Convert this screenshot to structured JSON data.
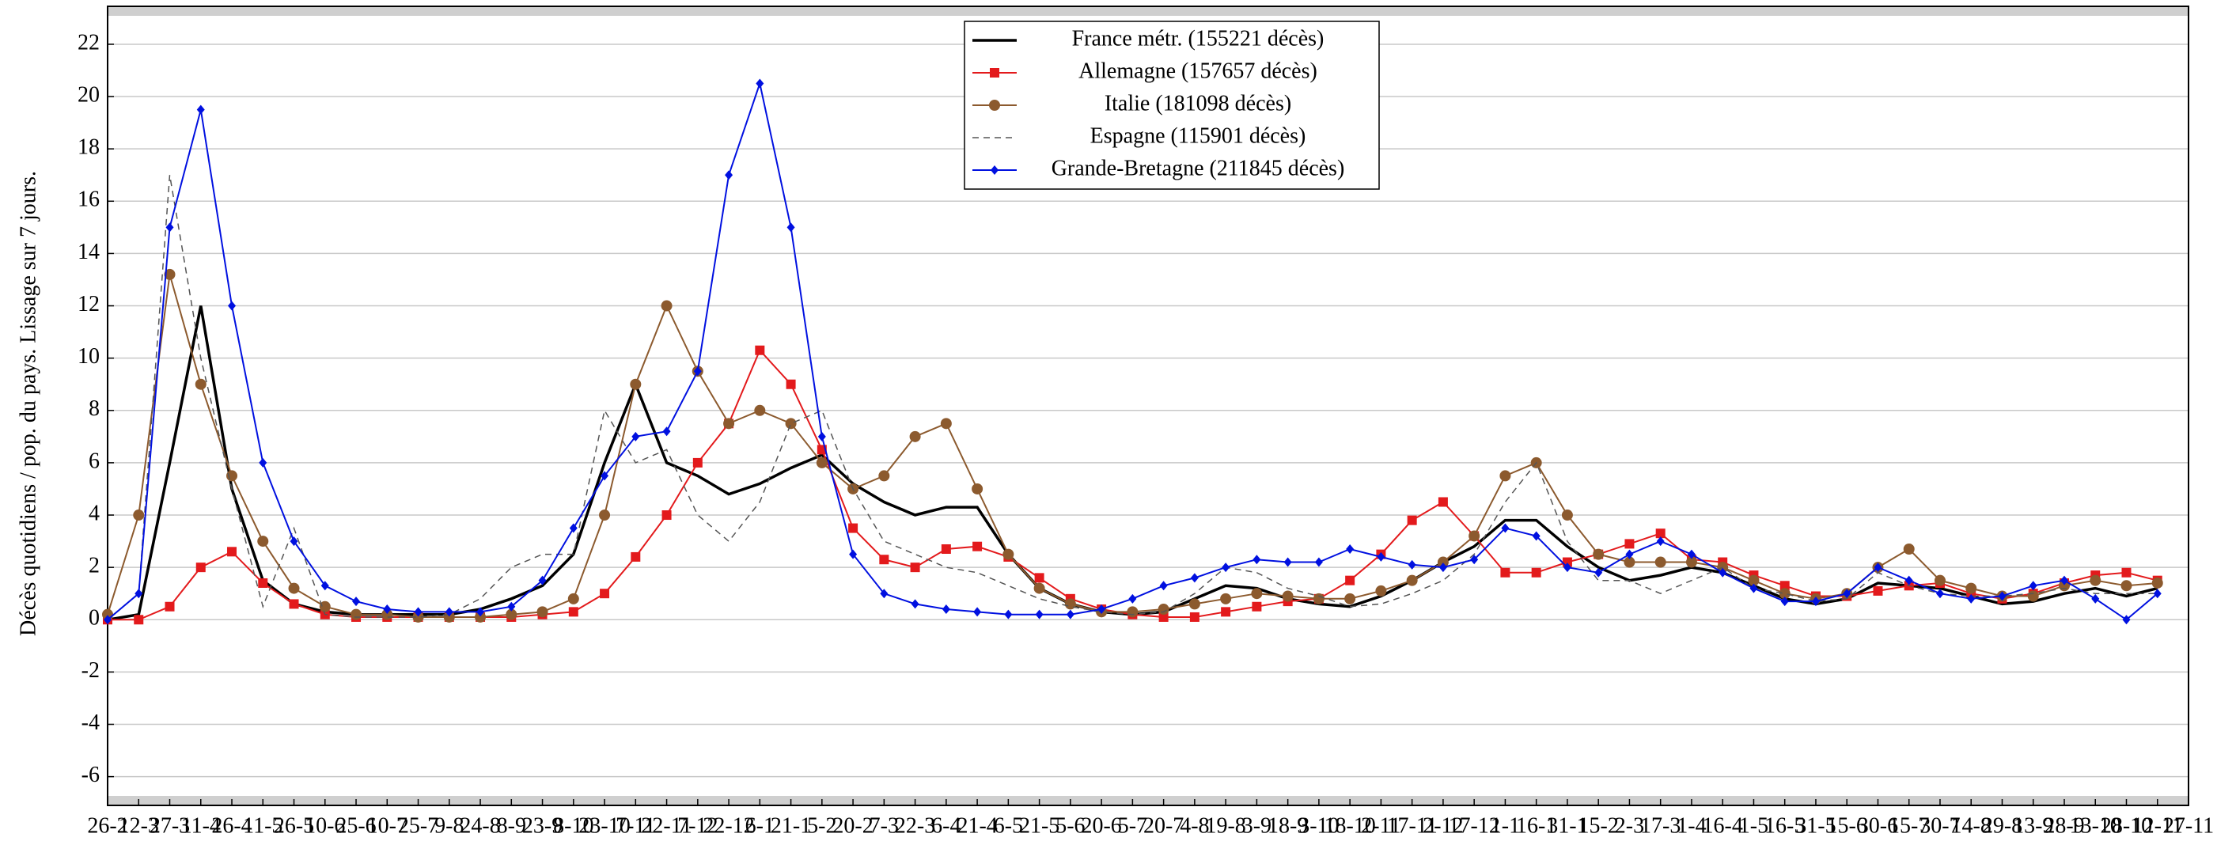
{
  "chart_data": {
    "type": "line",
    "ylabel": "Décès quotidiens / pop. du pays. Lissage sur 7 jours.",
    "categories": [
      "26-2",
      "12-3",
      "27-3",
      "11-4",
      "26-4",
      "11-5",
      "26-5",
      "10-6",
      "25-6",
      "10-7",
      "25-7",
      "9-8",
      "24-8",
      "8-9",
      "23-9",
      "8-10",
      "23-10",
      "7-11",
      "22-11",
      "7-12",
      "22-12",
      "6-1",
      "21-1",
      "5-2",
      "20-2",
      "7-3",
      "22-3",
      "6-4",
      "21-4",
      "6-5",
      "21-5",
      "5-6",
      "20-6",
      "5-7",
      "20-7",
      "4-8",
      "19-8",
      "3-9",
      "18-9",
      "3-10",
      "18-10",
      "2-11",
      "17-11",
      "2-12",
      "17-12",
      "1-1",
      "16-1",
      "31-1",
      "15-2",
      "2-3",
      "17-3",
      "1-4",
      "16-4",
      "1-5",
      "16-5",
      "31-5",
      "15-6",
      "30-6",
      "15-7",
      "30-7",
      "14-8",
      "29-8",
      "13-9",
      "28-9",
      "13-10",
      "28-10",
      "12-11",
      "27-11"
    ],
    "series": [
      {
        "name": "France métr. (155221 décès)",
        "color": "#000000",
        "marker": "none",
        "linestyle": "solid",
        "values": [
          0,
          0.2,
          6,
          12,
          5,
          1.5,
          0.6,
          0.3,
          0.2,
          0.2,
          0.2,
          0.2,
          0.4,
          0.8,
          1.3,
          2.5,
          6,
          9,
          6,
          5.5,
          4.8,
          5.2,
          5.8,
          6.3,
          5.2,
          4.5,
          4,
          4.3,
          4.3,
          2.5,
          1.2,
          0.6,
          0.3,
          0.2,
          0.3,
          0.8,
          1.3,
          1.2,
          0.8,
          0.6,
          0.5,
          0.9,
          1.5,
          2.2,
          2.8,
          3.8,
          3.8,
          2.8,
          2,
          1.5,
          1.7,
          2,
          1.8,
          1.3,
          0.8,
          0.6,
          0.8,
          1.4,
          1.3,
          1.2,
          0.9,
          0.6,
          0.7,
          1,
          1.2,
          0.9,
          1.2,
          null
        ]
      },
      {
        "name": "Allemagne (157657 décès)",
        "color": "#e31a1c",
        "marker": "square",
        "linestyle": "solid",
        "values": [
          0,
          0,
          0.5,
          2,
          2.6,
          1.4,
          0.6,
          0.2,
          0.1,
          0.1,
          0.1,
          0.1,
          0.1,
          0.1,
          0.2,
          0.3,
          1,
          2.4,
          4,
          6,
          7.5,
          10.3,
          9,
          6.5,
          3.5,
          2.3,
          2,
          2.7,
          2.8,
          2.4,
          1.6,
          0.8,
          0.4,
          0.2,
          0.1,
          0.1,
          0.3,
          0.5,
          0.7,
          0.8,
          1.5,
          2.5,
          3.8,
          4.5,
          3.2,
          1.8,
          1.8,
          2.2,
          2.5,
          2.9,
          3.3,
          2.3,
          2.2,
          1.7,
          1.3,
          0.9,
          0.9,
          1.1,
          1.3,
          1.4,
          1,
          0.8,
          1,
          1.4,
          1.7,
          1.8,
          1.5,
          null
        ]
      },
      {
        "name": "Italie (181098 décès)",
        "color": "#8c5a2e",
        "marker": "circle",
        "linestyle": "solid",
        "values": [
          0.2,
          4,
          13.2,
          9,
          5.5,
          3,
          1.2,
          0.5,
          0.2,
          0.2,
          0.1,
          0.1,
          0.1,
          0.2,
          0.3,
          0.8,
          4,
          9,
          12,
          9.5,
          7.5,
          8,
          7.5,
          6,
          5,
          5.5,
          7,
          7.5,
          5,
          2.5,
          1.2,
          0.6,
          0.3,
          0.3,
          0.4,
          0.6,
          0.8,
          1,
          0.9,
          0.8,
          0.8,
          1.1,
          1.5,
          2.2,
          3.2,
          5.5,
          6,
          4,
          2.5,
          2.2,
          2.2,
          2.2,
          2,
          1.5,
          1,
          0.8,
          1,
          2,
          2.7,
          1.5,
          1.2,
          0.9,
          0.9,
          1.3,
          1.5,
          1.3,
          1.4,
          null
        ]
      },
      {
        "name": "Espagne (115901 décès)",
        "color": "#555555",
        "marker": "none",
        "linestyle": "dashed",
        "values": [
          0,
          1,
          17,
          10,
          5,
          0.5,
          3.5,
          0.2,
          0.1,
          0.1,
          0.1,
          0.2,
          0.8,
          2,
          2.5,
          2.5,
          8,
          6,
          6.5,
          4,
          3,
          4.5,
          7.5,
          8,
          5,
          3,
          2.5,
          2,
          1.8,
          1.3,
          0.8,
          0.5,
          0.3,
          0.2,
          0.3,
          1,
          2,
          1.8,
          1.2,
          0.9,
          0.5,
          0.6,
          1,
          1.5,
          2.5,
          4.5,
          6,
          3,
          1.5,
          1.5,
          1,
          1.5,
          2,
          1.2,
          1,
          0.7,
          0.8,
          1.8,
          1.3,
          1,
          0.9,
          0.9,
          1,
          1.2,
          1,
          1,
          1,
          null
        ]
      },
      {
        "name": "Grande-Bretagne (211845 décès)",
        "color": "#0010e0",
        "marker": "diamond",
        "linestyle": "solid",
        "values": [
          0,
          1,
          15,
          19.5,
          12,
          6,
          3,
          1.3,
          0.7,
          0.4,
          0.3,
          0.3,
          0.3,
          0.5,
          1.5,
          3.5,
          5.5,
          7,
          7.2,
          9.5,
          17,
          20.5,
          15,
          7,
          2.5,
          1,
          0.6,
          0.4,
          0.3,
          0.2,
          0.2,
          0.2,
          0.4,
          0.8,
          1.3,
          1.6,
          2,
          2.3,
          2.2,
          2.2,
          2.7,
          2.4,
          2.1,
          2,
          2.3,
          3.5,
          3.2,
          2,
          1.8,
          2.5,
          3,
          2.5,
          1.8,
          1.2,
          0.7,
          0.7,
          1,
          2,
          1.5,
          1,
          0.8,
          0.9,
          1.3,
          1.5,
          0.8,
          0,
          1,
          null
        ]
      }
    ],
    "ylim": [
      -7.1,
      23.45
    ],
    "yticks": [
      -6,
      -4,
      -2,
      0,
      2,
      4,
      6,
      8,
      10,
      12,
      14,
      16,
      18,
      20,
      22
    ],
    "grid": true,
    "legend": "upper center"
  }
}
